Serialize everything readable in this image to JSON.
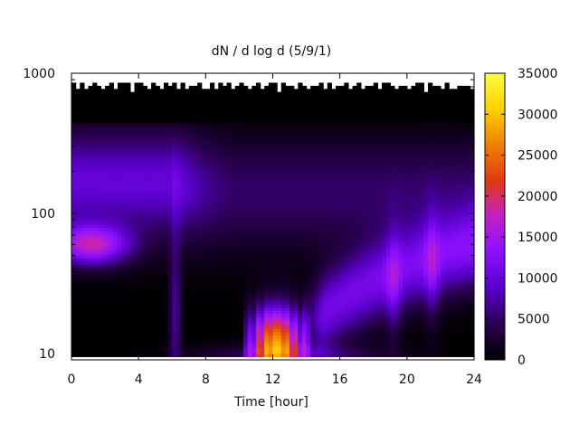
{
  "chart_data": {
    "type": "heatmap",
    "title": "dN / d log d (5/9/1)",
    "xlabel": "Time [hour]",
    "ylabel": "",
    "x_ticks": [
      "0",
      "4",
      "8",
      "12",
      "16",
      "20",
      "24"
    ],
    "y_ticks": [
      "10",
      "100",
      "1000"
    ],
    "y_scale": "log",
    "xlim": [
      0,
      24
    ],
    "ylim": [
      9,
      1000
    ],
    "data_y_range": [
      9.5,
      900
    ],
    "colorbar": {
      "ticks": [
        "0",
        "5000",
        "10000",
        "15000",
        "20000",
        "25000",
        "30000",
        "35000"
      ],
      "range": [
        0,
        35000
      ],
      "colormap": [
        "#000000",
        "#2a0050",
        "#5800c8",
        "#8c10ff",
        "#c020c8",
        "#e03a10",
        "#f08000",
        "#ffd000",
        "#ffff40"
      ]
    },
    "grid": false,
    "features": [
      {
        "description": "mode near 60 nm, hours 0-3",
        "value": 16000
      },
      {
        "description": "broad mode 100-400 nm, hours 0-6",
        "value": 8000
      },
      {
        "description": "nucleation burst 10-25 nm, hours 10.5-14",
        "value": 30000
      },
      {
        "description": "growing mode 30-60 nm, hours 16-24",
        "value": 11000
      }
    ]
  }
}
